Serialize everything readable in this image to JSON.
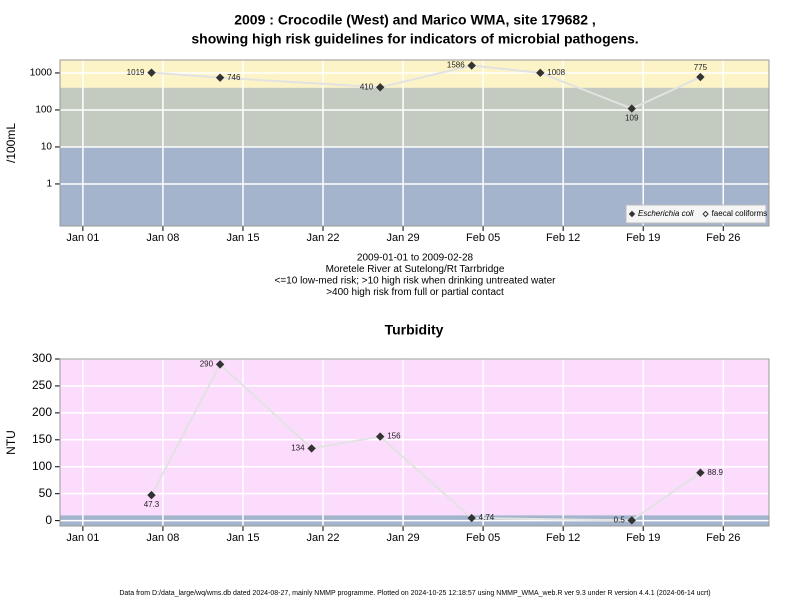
{
  "chart_data": [
    {
      "type": "line",
      "title": "2009 : Crocodile (West) and Marico WMA, site 179682 ,",
      "subtitle": "showing high risk guidelines for indicators of microbial pathogens.",
      "ylabel": "/100mL",
      "log_y": true,
      "x": [
        "2009-01-07",
        "2009-01-13",
        "2009-01-27",
        "2009-02-04",
        "2009-02-10",
        "2009-02-18",
        "2009-02-24"
      ],
      "series": [
        {
          "name": "Escherichia coli",
          "color": "#333333",
          "marker": "filled",
          "values": [
            1019,
            746,
            410,
            1586,
            1008,
            109,
            775
          ]
        },
        {
          "name": "faecal coliforms",
          "color": "#333333",
          "marker": "open",
          "values": [
            null,
            null,
            null,
            null,
            null,
            null,
            null
          ]
        }
      ],
      "xlim": [
        "2008-12-30",
        "2009-03-02"
      ],
      "xticks": [
        {
          "value": "2009-01-01",
          "label": "Jan 01"
        },
        {
          "value": "2009-01-08",
          "label": "Jan 08"
        },
        {
          "value": "2009-01-15",
          "label": "Jan 15"
        },
        {
          "value": "2009-01-22",
          "label": "Jan 22"
        },
        {
          "value": "2009-01-29",
          "label": "Jan 29"
        },
        {
          "value": "2009-02-05",
          "label": "Feb 05"
        },
        {
          "value": "2009-02-12",
          "label": "Feb 12"
        },
        {
          "value": "2009-02-19",
          "label": "Feb 19"
        },
        {
          "value": "2009-02-26",
          "label": "Feb 26"
        }
      ],
      "ylim": [
        0.073,
        2240
      ],
      "yticks": [
        1,
        10,
        100,
        1000
      ],
      "grid": true,
      "line_color": "#e2e2e2",
      "bands": [
        {
          "to": 10,
          "color": "#a3b4cc"
        },
        {
          "from": 10,
          "to": 400,
          "color": "#c3cbc0"
        },
        {
          "from": 400,
          "color": "#fcf4c6"
        }
      ],
      "legend": "bottom-right",
      "notes": [
        "2009-01-01 to 2009-02-28",
        "Moretele River at Sutelong/Rt Tarrbridge",
        "<=10 low-med risk; >10 high risk when drinking untreated water",
        ">400 high risk from full or partial contact"
      ]
    },
    {
      "type": "line",
      "title": "Turbidity",
      "ylabel": "NTU",
      "x": [
        "2009-01-07",
        "2009-01-13",
        "2009-01-21",
        "2009-01-27",
        "2009-02-04",
        "2009-02-18",
        "2009-02-24"
      ],
      "series": [
        {
          "name": "Turbidity",
          "color": "#333333",
          "marker": "filled",
          "values": [
            47.3,
            290,
            134,
            156,
            4.74,
            0.5,
            88.9
          ]
        }
      ],
      "xlim": [
        "2008-12-30",
        "2009-03-02"
      ],
      "xticks": [
        {
          "value": "2009-01-01",
          "label": "Jan 01"
        },
        {
          "value": "2009-01-08",
          "label": "Jan 08"
        },
        {
          "value": "2009-01-15",
          "label": "Jan 15"
        },
        {
          "value": "2009-01-22",
          "label": "Jan 22"
        },
        {
          "value": "2009-01-29",
          "label": "Jan 29"
        },
        {
          "value": "2009-02-05",
          "label": "Feb 05"
        },
        {
          "value": "2009-02-12",
          "label": "Feb 12"
        },
        {
          "value": "2009-02-19",
          "label": "Feb 19"
        },
        {
          "value": "2009-02-26",
          "label": "Feb 26"
        }
      ],
      "ylim": [
        -10,
        300
      ],
      "yticks": [
        0,
        50,
        100,
        150,
        200,
        250,
        300
      ],
      "grid": true,
      "line_color": "#e2e2e2",
      "bands": [
        {
          "to": 10,
          "color": "#a3b4cc"
        },
        {
          "from": 10,
          "color": "#fcdcfc"
        }
      ]
    }
  ],
  "footer": "Data from D:/data_large/wq/wms.db dated 2024-08-27, mainly NMMP programme. Plotted on 2024-10-25 12:18:57 using NMMP_WMA_web.R ver 9.3 under R version 4.4.1 (2024-06-14 ucrt)"
}
